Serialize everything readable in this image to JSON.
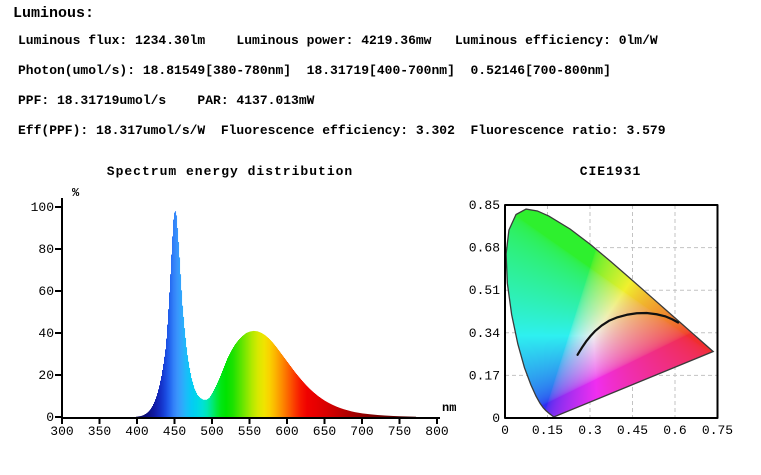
{
  "page": {
    "title": "Luminous:"
  },
  "metrics": {
    "lines": [
      "Luminous flux: 1234.30lm    Luminous power: 4219.36mw   Luminous efficiency: 0lm/W",
      "Photon(umol/s): 18.81549[380-780nm]  18.31719[400-700nm]  0.52146[700-800nm]",
      "PPF: 18.31719umol/s    PAR: 4137.013mW",
      "Eff(PPF): 18.317umol/s/W  Fluorescence efficiency: 3.302  Fluorescence ratio: 3.579"
    ]
  },
  "colors": {
    "axis": "#000000",
    "text": "#000000",
    "grid": "#c3c3c3",
    "planckian_curve": "#111111",
    "locus_outline": "#3a3a3a",
    "frame": "#000000"
  },
  "chart_data": [
    {
      "type": "area",
      "title": "Spectrum energy distribution",
      "xlabel": "nm",
      "ylabel": "%",
      "xlim": [
        300,
        800
      ],
      "ylim": [
        0,
        100
      ],
      "x_ticks": [
        300,
        350,
        400,
        450,
        500,
        550,
        600,
        650,
        700,
        750,
        800
      ],
      "y_ticks": [
        0,
        20,
        40,
        60,
        80,
        100
      ],
      "grid": false,
      "fill": "spectral-wavelength-colors",
      "points": [
        [
          380,
          0
        ],
        [
          395,
          0
        ],
        [
          400,
          0.2
        ],
        [
          405,
          0.5
        ],
        [
          408,
          0.9
        ],
        [
          411,
          1.5
        ],
        [
          414,
          2.3
        ],
        [
          417,
          3.5
        ],
        [
          420,
          5.2
        ],
        [
          423,
          7.5
        ],
        [
          426,
          10.5
        ],
        [
          429,
          14.5
        ],
        [
          432,
          19.5
        ],
        [
          435,
          26
        ],
        [
          438,
          34
        ],
        [
          440,
          44
        ],
        [
          442,
          55
        ],
        [
          444,
          68
        ],
        [
          446,
          82
        ],
        [
          448,
          94
        ],
        [
          450,
          99
        ],
        [
          452,
          96
        ],
        [
          454,
          87
        ],
        [
          456,
          76
        ],
        [
          458,
          64
        ],
        [
          460,
          53
        ],
        [
          463,
          41
        ],
        [
          466,
          31
        ],
        [
          469,
          24
        ],
        [
          472,
          18.5
        ],
        [
          476,
          13.5
        ],
        [
          480,
          10.5
        ],
        [
          484,
          9
        ],
        [
          488,
          8.2
        ],
        [
          492,
          8.2
        ],
        [
          496,
          9.2
        ],
        [
          500,
          11.5
        ],
        [
          505,
          15
        ],
        [
          510,
          19
        ],
        [
          515,
          23.5
        ],
        [
          520,
          28
        ],
        [
          525,
          31.5
        ],
        [
          530,
          34.5
        ],
        [
          535,
          36.8
        ],
        [
          540,
          38.6
        ],
        [
          545,
          40
        ],
        [
          550,
          40.7
        ],
        [
          555,
          41
        ],
        [
          560,
          40.8
        ],
        [
          565,
          40.1
        ],
        [
          570,
          39
        ],
        [
          575,
          37.5
        ],
        [
          580,
          35.6
        ],
        [
          585,
          33.4
        ],
        [
          590,
          31
        ],
        [
          595,
          28.6
        ],
        [
          600,
          26.2
        ],
        [
          605,
          23.8
        ],
        [
          610,
          21.4
        ],
        [
          615,
          19.2
        ],
        [
          620,
          17.1
        ],
        [
          625,
          15.1
        ],
        [
          630,
          13.3
        ],
        [
          635,
          11.7
        ],
        [
          640,
          10.2
        ],
        [
          645,
          8.9
        ],
        [
          650,
          7.7
        ],
        [
          655,
          6.7
        ],
        [
          660,
          5.8
        ],
        [
          665,
          5
        ],
        [
          670,
          4.3
        ],
        [
          675,
          3.7
        ],
        [
          680,
          3.2
        ],
        [
          685,
          2.7
        ],
        [
          690,
          2.3
        ],
        [
          695,
          2
        ],
        [
          700,
          1.7
        ],
        [
          710,
          1.3
        ],
        [
          720,
          0.95
        ],
        [
          730,
          0.7
        ],
        [
          740,
          0.5
        ],
        [
          750,
          0.35
        ],
        [
          760,
          0.25
        ],
        [
          770,
          0.15
        ],
        [
          780,
          0
        ]
      ]
    },
    {
      "type": "line",
      "title": "CIE1931",
      "xlim": [
        0,
        0.75
      ],
      "ylim": [
        0,
        0.85
      ],
      "x_ticks": [
        "0",
        "0.15",
        "0.3",
        "0.45",
        "0.6",
        "0.75"
      ],
      "y_ticks": [
        "0",
        "0.17",
        "0.34",
        "0.51",
        "0.68",
        "0.85"
      ],
      "grid": "dashed",
      "fill": "cie-chromaticity-colors",
      "series": [
        {
          "name": "spectral-locus-boundary",
          "points": [
            [
              0.1741,
              0.005
            ],
            [
              0.1733,
              0.0048
            ],
            [
              0.1714,
              0.0051
            ],
            [
              0.1689,
              0.0069
            ],
            [
              0.1644,
              0.0109
            ],
            [
              0.1566,
              0.0177
            ],
            [
              0.144,
              0.0297
            ],
            [
              0.1355,
              0.0399
            ],
            [
              0.1241,
              0.0578
            ],
            [
              0.1096,
              0.0868
            ],
            [
              0.0913,
              0.1327
            ],
            [
              0.0687,
              0.2007
            ],
            [
              0.0454,
              0.295
            ],
            [
              0.0235,
              0.4127
            ],
            [
              0.0082,
              0.5384
            ],
            [
              0.0039,
              0.6548
            ],
            [
              0.0139,
              0.7502
            ],
            [
              0.0389,
              0.812
            ],
            [
              0.0743,
              0.8338
            ],
            [
              0.1142,
              0.8262
            ],
            [
              0.1547,
              0.8059
            ],
            [
              0.2296,
              0.7543
            ],
            [
              0.3016,
              0.6923
            ],
            [
              0.3731,
              0.6245
            ],
            [
              0.4441,
              0.5547
            ],
            [
              0.5125,
              0.4866
            ],
            [
              0.5752,
              0.4242
            ],
            [
              0.627,
              0.3725
            ],
            [
              0.6658,
              0.334
            ],
            [
              0.6915,
              0.3083
            ],
            [
              0.719,
              0.2809
            ],
            [
              0.73,
              0.27
            ],
            [
              0.7347,
              0.2653
            ]
          ]
        },
        {
          "name": "planckian-locus",
          "points": [
            [
              0.256,
              0.252
            ],
            [
              0.264,
              0.267
            ],
            [
              0.274,
              0.285
            ],
            [
              0.286,
              0.305
            ],
            [
              0.301,
              0.326
            ],
            [
              0.319,
              0.348
            ],
            [
              0.341,
              0.369
            ],
            [
              0.367,
              0.388
            ],
            [
              0.397,
              0.402
            ],
            [
              0.43,
              0.412
            ],
            [
              0.465,
              0.418
            ],
            [
              0.5,
              0.419
            ],
            [
              0.535,
              0.414
            ],
            [
              0.565,
              0.406
            ],
            [
              0.59,
              0.394
            ],
            [
              0.611,
              0.381
            ]
          ]
        }
      ]
    }
  ]
}
